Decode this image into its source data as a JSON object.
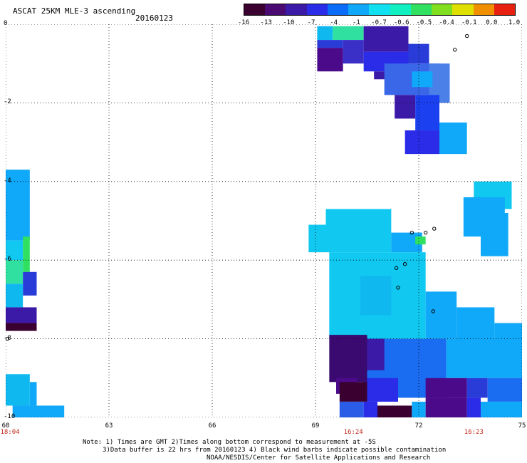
{
  "header": {
    "title": "ASCAT 25KM MLE-3 ascending",
    "date": "20160123"
  },
  "colorbar": {
    "labels": [
      "-16",
      "-13",
      "-10",
      "-7",
      "-4",
      "-1",
      "-0.7",
      "-0.6",
      "-0.5",
      "-0.4",
      "-0.1",
      "0.0",
      "1.0"
    ],
    "colors": [
      "#3a0030",
      "#4b0a72",
      "#3c1aa8",
      "#2a2ce8",
      "#0a6cf8",
      "#10a8f8",
      "#10e0f0",
      "#10f0c0",
      "#30e060",
      "#80e020",
      "#e0e000",
      "#f09000",
      "#e82010"
    ]
  },
  "map": {
    "lon_range": [
      60,
      75
    ],
    "lat_range": [
      -10,
      0
    ],
    "x_ticks": [
      "60",
      "63",
      "66",
      "69",
      "72",
      "75"
    ],
    "y_ticks": [
      "0",
      "-2",
      "-4",
      "-6",
      "-8",
      "-10"
    ],
    "time_labels": [
      {
        "lon": 60,
        "text": "18:04"
      },
      {
        "lon": 70.1,
        "text": "16:24"
      },
      {
        "lon": 73.6,
        "text": "16:23"
      }
    ],
    "swaths": [
      {
        "lon0": 69.05,
        "lon1": 69.5,
        "lat0": -0.05,
        "lat1": -0.4,
        "color": "#10b8f0"
      },
      {
        "lon0": 69.5,
        "lon1": 70.4,
        "lat0": -0.05,
        "lat1": -0.4,
        "color": "#30e0a0"
      },
      {
        "lon0": 69.05,
        "lon1": 69.8,
        "lat0": -0.4,
        "lat1": -0.6,
        "color": "#2a3cd8"
      },
      {
        "lon0": 69.05,
        "lon1": 69.8,
        "lat0": -0.6,
        "lat1": -1.2,
        "color": "#4b0a8a"
      },
      {
        "lon0": 69.8,
        "lon1": 70.4,
        "lat0": -0.4,
        "lat1": -1.0,
        "color": "#3a30c8"
      },
      {
        "lon0": 70.4,
        "lon1": 71.7,
        "lat0": -0.05,
        "lat1": -0.7,
        "color": "#3c1aa8"
      },
      {
        "lon0": 70.4,
        "lon1": 71.7,
        "lat0": -0.7,
        "lat1": -1.2,
        "color": "#2a2ce8"
      },
      {
        "lon0": 70.7,
        "lon1": 71.4,
        "lat0": -1.2,
        "lat1": -1.4,
        "color": "#3c1aa8"
      },
      {
        "lon0": 71.0,
        "lon1": 72.6,
        "lat0": -1.0,
        "lat1": -1.8,
        "color": "#3a66e8"
      },
      {
        "lon0": 71.7,
        "lon1": 72.3,
        "lat0": -0.5,
        "lat1": -1.0,
        "color": "#2a3cd8"
      },
      {
        "lon0": 72.3,
        "lon1": 72.9,
        "lat0": -1.0,
        "lat1": -2.0,
        "color": "#4a80e8"
      },
      {
        "lon0": 71.8,
        "lon1": 72.4,
        "lat0": -1.2,
        "lat1": -1.6,
        "color": "#10a8f8"
      },
      {
        "lon0": 71.9,
        "lon1": 72.6,
        "lat0": -1.8,
        "lat1": -2.7,
        "color": "#1a40f0"
      },
      {
        "lon0": 71.3,
        "lon1": 71.9,
        "lat0": -1.8,
        "lat1": -2.4,
        "color": "#3c1aa8"
      },
      {
        "lon0": 72.6,
        "lon1": 73.4,
        "lat0": -2.5,
        "lat1": -3.3,
        "color": "#10a8f8"
      },
      {
        "lon0": 71.6,
        "lon1": 72.6,
        "lat0": -2.7,
        "lat1": -3.3,
        "color": "#2a2ce8"
      },
      {
        "lon0": 60.0,
        "lon1": 60.7,
        "lat0": -3.7,
        "lat1": -5.5,
        "color": "#10a8f8"
      },
      {
        "lon0": 60.0,
        "lon1": 60.5,
        "lat0": -5.5,
        "lat1": -6.0,
        "color": "#10c8f0"
      },
      {
        "lon0": 60.5,
        "lon1": 60.7,
        "lat0": -5.4,
        "lat1": -6.3,
        "color": "#30e060"
      },
      {
        "lon0": 60.0,
        "lon1": 60.5,
        "lat0": -6.0,
        "lat1": -6.6,
        "color": "#30e0a0"
      },
      {
        "lon0": 60.5,
        "lon1": 60.9,
        "lat0": -6.3,
        "lat1": -6.9,
        "color": "#2a3cd8"
      },
      {
        "lon0": 60.0,
        "lon1": 60.5,
        "lat0": -6.6,
        "lat1": -7.2,
        "color": "#10b8f0"
      },
      {
        "lon0": 60.0,
        "lon1": 60.9,
        "lat0": -7.2,
        "lat1": -7.6,
        "color": "#3c1aa8"
      },
      {
        "lon0": 60.0,
        "lon1": 60.9,
        "lat0": -7.6,
        "lat1": -7.8,
        "color": "#3a0030"
      },
      {
        "lon0": 60.0,
        "lon1": 60.7,
        "lat0": -8.9,
        "lat1": -9.7,
        "color": "#10b8f0"
      },
      {
        "lon0": 60.7,
        "lon1": 60.9,
        "lat0": -9.1,
        "lat1": -9.7,
        "color": "#10a8f8"
      },
      {
        "lon0": 60.2,
        "lon1": 61.7,
        "lat0": -9.7,
        "lat1": -10.0,
        "color": "#10a8f8"
      },
      {
        "lon0": 69.3,
        "lon1": 71.2,
        "lat0": -4.7,
        "lat1": -5.8,
        "color": "#10c8f0"
      },
      {
        "lon0": 68.8,
        "lon1": 69.3,
        "lat0": -5.1,
        "lat1": -5.8,
        "color": "#10c8f0"
      },
      {
        "lon0": 71.2,
        "lon1": 72.1,
        "lat0": -5.3,
        "lat1": -5.8,
        "color": "#10a8f8"
      },
      {
        "lon0": 71.9,
        "lon1": 72.2,
        "lat0": -5.4,
        "lat1": -5.6,
        "color": "#30e060"
      },
      {
        "lon0": 69.4,
        "lon1": 72.2,
        "lat0": -5.8,
        "lat1": -8.0,
        "color": "#10c8f0"
      },
      {
        "lon0": 70.3,
        "lon1": 71.2,
        "lat0": -6.4,
        "lat1": -7.4,
        "color": "#10b8f0"
      },
      {
        "lon0": 72.2,
        "lon1": 73.1,
        "lat0": -6.8,
        "lat1": -8.0,
        "color": "#10a8f8"
      },
      {
        "lon0": 73.1,
        "lon1": 74.2,
        "lat0": -7.2,
        "lat1": -8.4,
        "color": "#10a8f8"
      },
      {
        "lon0": 74.2,
        "lon1": 75.0,
        "lat0": -7.6,
        "lat1": -8.6,
        "color": "#10a8f8"
      },
      {
        "lon0": 73.6,
        "lon1": 74.7,
        "lat0": -4.0,
        "lat1": -4.7,
        "color": "#10c8f0"
      },
      {
        "lon0": 73.3,
        "lon1": 74.5,
        "lat0": -4.4,
        "lat1": -5.4,
        "color": "#10a8f8"
      },
      {
        "lon0": 73.8,
        "lon1": 74.6,
        "lat0": -4.8,
        "lat1": -5.9,
        "color": "#10a8f8"
      },
      {
        "lon0": 70.4,
        "lon1": 72.8,
        "lat0": -8.0,
        "lat1": -9.5,
        "color": "#1a6cf0"
      },
      {
        "lon0": 72.8,
        "lon1": 75.0,
        "lat0": -8.0,
        "lat1": -9.0,
        "color": "#10a8f8"
      },
      {
        "lon0": 69.4,
        "lon1": 70.5,
        "lat0": -7.9,
        "lat1": -9.1,
        "color": "#3a0a70"
      },
      {
        "lon0": 69.6,
        "lon1": 70.2,
        "lat0": -9.0,
        "lat1": -9.4,
        "color": "#4b0a8a"
      },
      {
        "lon0": 70.5,
        "lon1": 71.0,
        "lat0": -8.0,
        "lat1": -8.8,
        "color": "#3c1aa8"
      },
      {
        "lon0": 69.7,
        "lon1": 70.5,
        "lat0": -9.1,
        "lat1": -9.6,
        "color": "#3a0030"
      },
      {
        "lon0": 70.5,
        "lon1": 71.4,
        "lat0": -9.0,
        "lat1": -9.6,
        "color": "#2a2ce8"
      },
      {
        "lon0": 72.2,
        "lon1": 73.4,
        "lat0": -9.0,
        "lat1": -9.5,
        "color": "#4b0a8a"
      },
      {
        "lon0": 73.4,
        "lon1": 74.0,
        "lat0": -9.0,
        "lat1": -9.5,
        "color": "#2a3cd8"
      },
      {
        "lon0": 74.0,
        "lon1": 75.0,
        "lat0": -9.0,
        "lat1": -9.6,
        "color": "#1a6cf0"
      },
      {
        "lon0": 69.7,
        "lon1": 70.4,
        "lat0": -9.6,
        "lat1": -10.0,
        "color": "#2a5ce8"
      },
      {
        "lon0": 70.4,
        "lon1": 70.8,
        "lat0": -9.6,
        "lat1": -10.0,
        "color": "#2a2ce8"
      },
      {
        "lon0": 70.8,
        "lon1": 71.8,
        "lat0": -9.7,
        "lat1": -10.0,
        "color": "#3a0030"
      },
      {
        "lon0": 71.8,
        "lon1": 72.2,
        "lat0": -9.6,
        "lat1": -10.0,
        "color": "#10a8f8"
      },
      {
        "lon0": 72.2,
        "lon1": 73.4,
        "lat0": -9.5,
        "lat1": -10.0,
        "color": "#4b0a8a"
      },
      {
        "lon0": 73.4,
        "lon1": 73.8,
        "lat0": -9.5,
        "lat1": -10.0,
        "color": "#2a2ce8"
      },
      {
        "lon0": 73.8,
        "lon1": 75.0,
        "lat0": -9.6,
        "lat1": -10.0,
        "color": "#10a8f8"
      }
    ],
    "islands": [
      {
        "lon": 73.05,
        "lat": -0.65
      },
      {
        "lon": 73.4,
        "lat": -0.3
      },
      {
        "lon": 71.8,
        "lat": -5.3
      },
      {
        "lon": 72.2,
        "lat": -5.3
      },
      {
        "lon": 72.45,
        "lat": -5.2
      },
      {
        "lon": 71.35,
        "lat": -6.2
      },
      {
        "lon": 71.6,
        "lat": -6.1
      },
      {
        "lon": 71.4,
        "lat": -6.7
      },
      {
        "lon": 72.42,
        "lat": -7.3
      },
      {
        "lon": 60.05,
        "lat": -8.0
      }
    ]
  },
  "notes": {
    "line1": "Note: 1) Times are GMT 2)Times along bottom correspond to measurement at -5S",
    "line2": "3)Data buffer is 22 hrs from 20160123 4) Black wind barbs indicate possible contamination",
    "line3": "NOAA/NESDIS/Center for Satellite Applications and Research"
  }
}
